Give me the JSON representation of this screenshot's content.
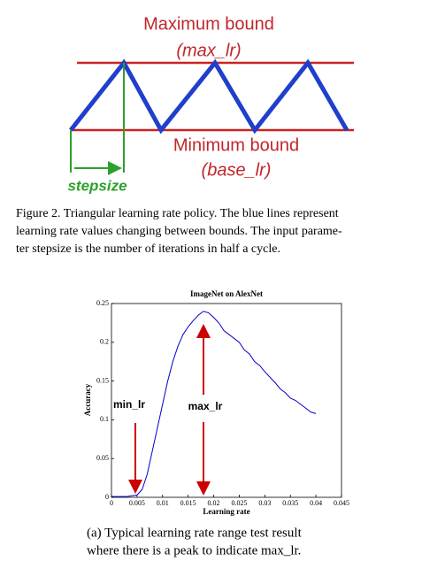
{
  "diagram": {
    "max_label": "Maximum bound",
    "max_var": "(max_lr)",
    "min_label": "Minimum bound",
    "min_var": "(base_lr)",
    "step_label": "stepsize"
  },
  "figure_caption": [
    "Figure 2. Triangular learning rate policy. The blue lines represent",
    "learning rate values changing between bounds. The input parame-",
    "ter stepsize is the number of iterations in half a cycle."
  ],
  "chart_data": {
    "type": "line",
    "title": "ImageNet on AlexNet",
    "x_label": "Learning rate",
    "y_label": "Accuracy",
    "xlim": [
      0,
      0.045
    ],
    "xticks": [
      0,
      0.005,
      0.01,
      0.015,
      0.02,
      0.025,
      0.03,
      0.035,
      0.04,
      0.045
    ],
    "ylim": [
      0,
      0.25
    ],
    "yticks": [
      0,
      0.05,
      0.1,
      0.15,
      0.2,
      0.25
    ],
    "series": [
      {
        "color": "#0000cc",
        "x": [
          0,
          0.001,
          0.002,
          0.003,
          0.004,
          0.005,
          0.006,
          0.007,
          0.008,
          0.009,
          0.01,
          0.011,
          0.012,
          0.013,
          0.014,
          0.015,
          0.016,
          0.017,
          0.018,
          0.019,
          0.02,
          0.021,
          0.022,
          0.023,
          0.024,
          0.025,
          0.026,
          0.027,
          0.028,
          0.029,
          0.03,
          0.031,
          0.032,
          0.033,
          0.034,
          0.035,
          0.036,
          0.037,
          0.038,
          0.039,
          0.04
        ],
        "values": [
          0.001,
          0.001,
          0.001,
          0.001,
          0.002,
          0.003,
          0.01,
          0.03,
          0.06,
          0.09,
          0.12,
          0.15,
          0.175,
          0.195,
          0.21,
          0.22,
          0.228,
          0.235,
          0.24,
          0.238,
          0.232,
          0.225,
          0.215,
          0.21,
          0.205,
          0.2,
          0.19,
          0.185,
          0.175,
          0.17,
          0.162,
          0.155,
          0.148,
          0.14,
          0.135,
          0.128,
          0.125,
          0.12,
          0.115,
          0.11,
          0.108
        ]
      }
    ],
    "annotations": [
      "min_lr",
      "max_lr"
    ]
  },
  "subcaption": [
    "(a) Typical learning rate range test result",
    "where there is a peak to indicate max_lr."
  ]
}
